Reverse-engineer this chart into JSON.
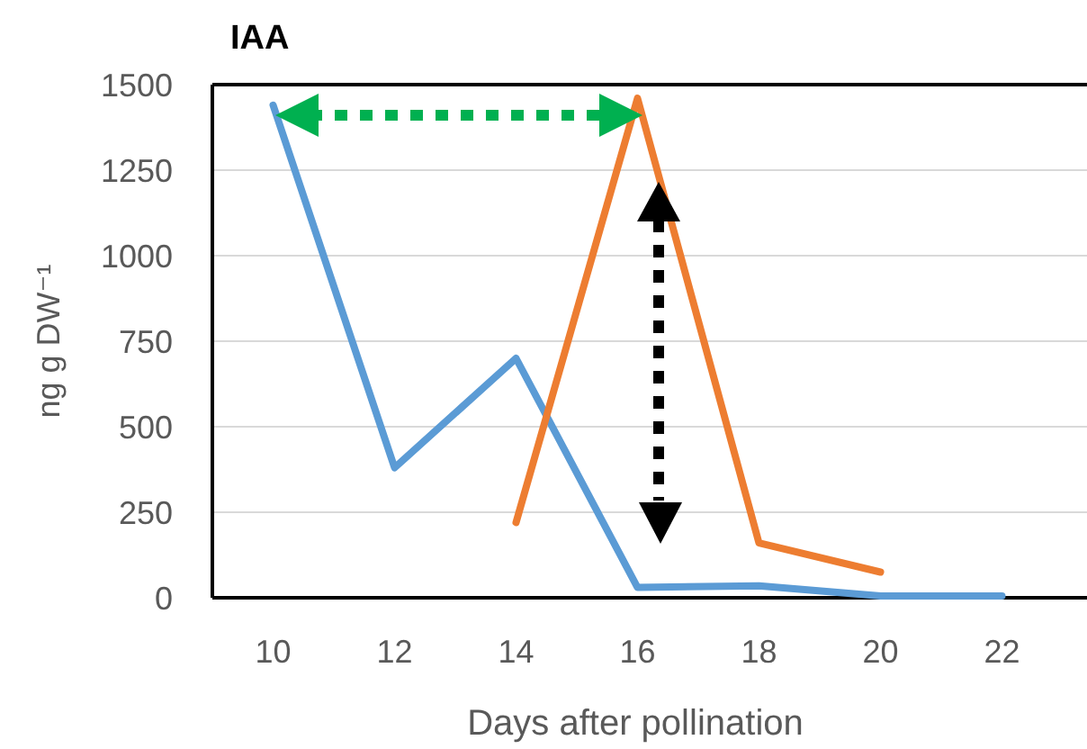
{
  "chart_data": {
    "type": "line",
    "title": "IAA",
    "xlabel": "Days after pollination",
    "ylabel": "ng g DW⁻¹",
    "categories": [
      "10",
      "12",
      "14",
      "16",
      "18",
      "20",
      "22"
    ],
    "series": [
      {
        "color": "#5b9bd5",
        "values": [
          1440,
          380,
          700,
          30,
          35,
          5,
          5
        ]
      },
      {
        "color": "#ed7d31",
        "values": [
          null,
          null,
          220,
          1460,
          160,
          75,
          null
        ]
      }
    ],
    "ylim": [
      0,
      1500
    ],
    "yticks": [
      0,
      250,
      500,
      750,
      1000,
      1250,
      1500
    ],
    "grid": "y",
    "marker": "none",
    "line_style": "solid"
  }
}
